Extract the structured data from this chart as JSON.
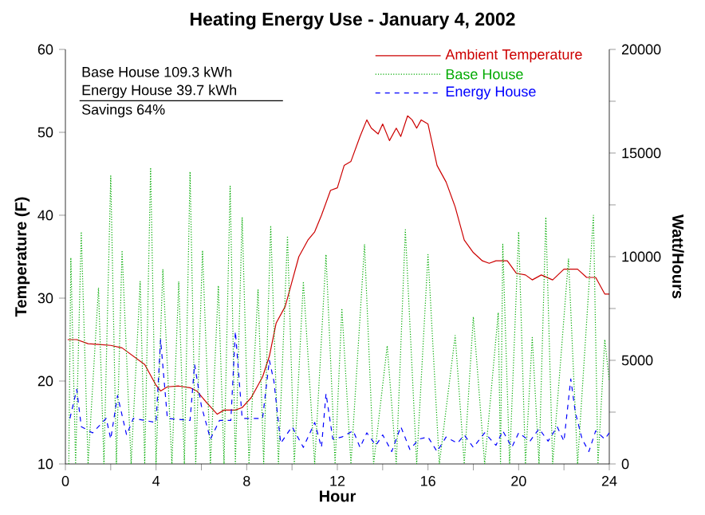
{
  "chart_data": {
    "type": "line",
    "title": "Heating Energy Use - January 4, 2002",
    "xlabel": "Hour",
    "ylabel": "Temperature (F)",
    "y2label": "Watt/Hours",
    "xlim": [
      0,
      24
    ],
    "xticks": [
      0,
      {
        "value": 2,
        "label": null
      },
      4,
      {
        "value": 6,
        "label": null
      },
      8,
      {
        "value": 10,
        "label": null
      },
      12,
      {
        "value": 14,
        "label": null
      },
      16,
      {
        "value": 18,
        "label": null
      },
      20,
      {
        "value": 22,
        "label": null
      },
      24
    ],
    "ylim": [
      10,
      60
    ],
    "yticks": [
      10,
      20,
      30,
      40,
      50,
      60
    ],
    "y2lim": [
      0,
      20000
    ],
    "y2ticks": [
      0,
      {
        "value": 2500,
        "label": null
      },
      5000,
      {
        "value": 7500,
        "label": null
      },
      10000,
      {
        "value": 12500,
        "label": null
      },
      15000,
      {
        "value": 17500,
        "label": null
      },
      20000
    ],
    "grid": false,
    "legend": "top right",
    "marker": "none",
    "annotations": [
      "Base House 109.3 kWh",
      "Energy House 39.7 kWh",
      "Savings 64%"
    ],
    "series": [
      {
        "name": "Ambient Temperature",
        "color": "#cc0000",
        "line_style": "solid",
        "x": [
          0.1,
          0.5,
          1,
          1.5,
          2,
          2.5,
          3,
          3.5,
          4,
          4.2,
          4.5,
          5,
          5.5,
          5.8,
          6.2,
          6.7,
          7,
          7.5,
          7.8,
          8.2,
          8.7,
          9,
          9.3,
          9.7,
          10,
          10.3,
          10.7,
          11,
          11.3,
          11.7,
          12,
          12.3,
          12.6,
          13,
          13.3,
          13.5,
          13.8,
          14,
          14.3,
          14.6,
          14.8,
          15.1,
          15.3,
          15.5,
          15.7,
          16,
          16.4,
          16.8,
          17.2,
          17.6,
          18,
          18.4,
          18.7,
          19,
          19.5,
          19.9,
          20.3,
          20.6,
          21,
          21.5,
          22,
          22.3,
          22.6,
          23,
          23.4,
          23.8,
          24
        ],
        "values": [
          25,
          25,
          24.5,
          24.4,
          24.3,
          24,
          23,
          22,
          19.5,
          18.8,
          19.3,
          19.4,
          19.2,
          18.8,
          17.5,
          16,
          16.5,
          16.5,
          16.8,
          18,
          20.5,
          23,
          27,
          29,
          32,
          35,
          37,
          38,
          40,
          43,
          43.3,
          46,
          46.5,
          49.5,
          51.5,
          50.5,
          49.8,
          51,
          49,
          50.5,
          49.5,
          52,
          51.5,
          50.5,
          51.5,
          51,
          46,
          44,
          41,
          37,
          35.5,
          34.5,
          34.2,
          34.5,
          34.5,
          33,
          32.8,
          32.2,
          32.8,
          32.2,
          33.5,
          33.5,
          33.5,
          32.5,
          32.5,
          30.5,
          30.5
        ]
      },
      {
        "name": "Base House",
        "color": "#00aa00",
        "line_style": "dotted",
        "axis": "y2",
        "x": [
          0.15,
          0.24,
          0.45,
          0.7,
          1.0,
          1.46,
          1.7,
          2.0,
          2.25,
          2.5,
          2.9,
          3.3,
          3.5,
          3.76,
          4.0,
          4.3,
          4.7,
          5.0,
          5.25,
          5.5,
          5.75,
          6.05,
          6.4,
          6.75,
          7.0,
          7.27,
          7.5,
          7.8,
          8.1,
          8.5,
          8.75,
          9.06,
          9.4,
          9.8,
          10.1,
          10.5,
          11.0,
          11.5,
          11.9,
          12.2,
          12.6,
          13.2,
          13.6,
          14.2,
          14.6,
          15.0,
          15.5,
          16.0,
          16.5,
          17.2,
          17.6,
          18.0,
          18.5,
          19.1,
          19.2,
          19.3,
          19.6,
          20.0,
          20.3,
          20.6,
          20.9,
          21.2,
          21.5,
          22.2,
          22.6,
          23.3,
          23.5,
          23.8,
          24.0
        ],
        "values": [
          0,
          9950,
          0,
          11200,
          0,
          8500,
          0,
          13900,
          0,
          10300,
          0,
          8800,
          0,
          14300,
          0,
          9400,
          0,
          8800,
          0,
          14100,
          0,
          10300,
          0,
          8600,
          0,
          13400,
          0,
          11900,
          0,
          8400,
          0,
          11500,
          0,
          11000,
          0,
          8800,
          0,
          10100,
          0,
          7500,
          0,
          10600,
          0,
          5700,
          0,
          11300,
          0,
          10100,
          0,
          6200,
          0,
          7100,
          0,
          7300,
          0,
          10600,
          0,
          11200,
          0,
          6100,
          0,
          11900,
          0,
          9900,
          0,
          12000,
          0,
          6000,
          4000
        ]
      },
      {
        "name": "Energy House",
        "color": "#0000ff",
        "line_style": "dashed",
        "axis": "y2",
        "x": [
          0.2,
          0.5,
          0.7,
          1.2,
          1.8,
          2,
          2.3,
          2.7,
          3,
          4,
          4.2,
          4.5,
          5.5,
          5.7,
          6,
          6.4,
          6.8,
          7.3,
          7.5,
          7.8,
          8.7,
          9,
          9.2,
          9.5,
          10,
          10.5,
          11,
          11.3,
          11.5,
          11.8,
          12.2,
          12.7,
          13,
          13.3,
          13.7,
          14,
          14.4,
          14.8,
          15.2,
          15.6,
          16,
          16.4,
          16.8,
          17.3,
          17.6,
          18,
          18.5,
          19,
          19.3,
          19.7,
          20,
          20.5,
          20.9,
          21.3,
          21.7,
          22,
          22.3,
          22.5,
          22.8,
          23.1,
          23.4,
          23.8,
          24
        ],
        "values": [
          2200,
          3600,
          1800,
          1500,
          2200,
          1200,
          3300,
          1400,
          2200,
          2000,
          6000,
          2200,
          2100,
          4800,
          2800,
          1200,
          2100,
          2100,
          6400,
          2200,
          2200,
          5000,
          4000,
          1000,
          1800,
          800,
          2000,
          800,
          3400,
          1200,
          1300,
          1600,
          800,
          1500,
          900,
          1400,
          600,
          1800,
          700,
          1200,
          1300,
          600,
          1300,
          1000,
          1400,
          800,
          1500,
          900,
          1600,
          800,
          1500,
          1100,
          1700,
          1100,
          1800,
          1100,
          4100,
          2500,
          1200,
          600,
          1600,
          1200,
          1500
        ]
      }
    ]
  }
}
